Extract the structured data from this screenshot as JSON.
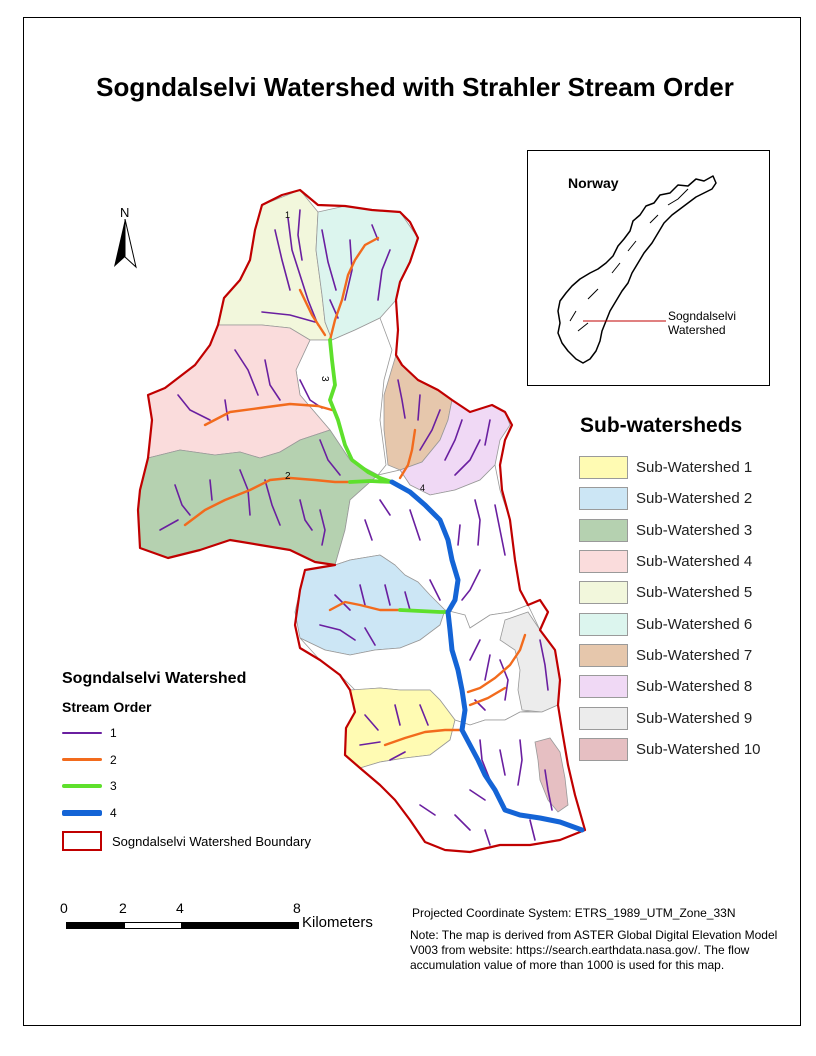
{
  "title": "Sogndalselvi Watershed with Strahler Stream Order",
  "north_arrow": "N",
  "inset": {
    "title": "Norway",
    "label": "Sogndalselvi Watershed"
  },
  "subwatersheds": {
    "title": "Sub-watersheds",
    "items": [
      {
        "label": "Sub-Watershed 1",
        "color": "#fffbb3"
      },
      {
        "label": "Sub-Watershed 2",
        "color": "#cce6f5"
      },
      {
        "label": "Sub-Watershed 3",
        "color": "#b5d1b0"
      },
      {
        "label": "Sub-Watershed 4",
        "color": "#fadcdc"
      },
      {
        "label": "Sub-Watershed 5",
        "color": "#f2f7dc"
      },
      {
        "label": "Sub-Watershed 6",
        "color": "#dcf5ee"
      },
      {
        "label": "Sub-Watershed 7",
        "color": "#e6c7ac"
      },
      {
        "label": "Sub-Watershed 8",
        "color": "#f0d9f5"
      },
      {
        "label": "Sub-Watershed 9",
        "color": "#ececec"
      },
      {
        "label": "Sub-Watershed 10",
        "color": "#e6bfc2"
      }
    ]
  },
  "stream_order": {
    "title": "Sogndalselvi Watershed",
    "subtitle": "Stream Order",
    "items": [
      {
        "label": "1",
        "color": "#6a1fa0",
        "weight": 2
      },
      {
        "label": "2",
        "color": "#f26b1d",
        "weight": 3
      },
      {
        "label": "3",
        "color": "#5ee02c",
        "weight": 4
      },
      {
        "label": "4",
        "color": "#1464d6",
        "weight": 6
      }
    ],
    "boundary_label": "Sogndalselvi Watershed Boundary",
    "boundary_color": "#c00000"
  },
  "scale_bar": {
    "ticks": [
      "0",
      "2",
      "4",
      "8"
    ],
    "unit": "Kilometers"
  },
  "map_labels": {
    "order1": "1",
    "order2": "2",
    "order3": "3",
    "order4": "4"
  },
  "projection": "Projected Coordinate System:   ETRS_1989_UTM_Zone_33N",
  "note": "Note: The map is derived from ASTER Global Digital Elevation Model V003 from website: https://search.earthdata.nasa.gov/. The flow accumulation value of more than 1000 is used for this map."
}
